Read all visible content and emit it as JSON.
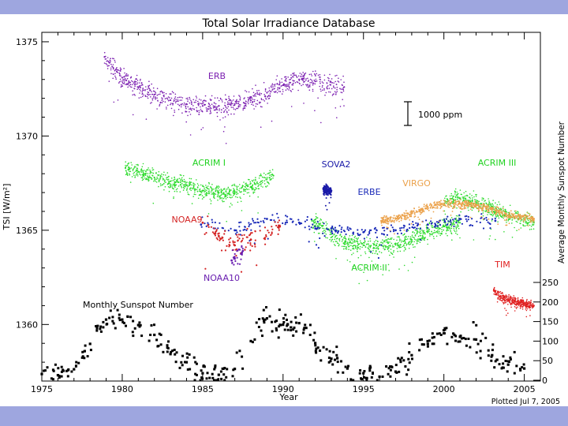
{
  "chart_data": {
    "type": "scatter",
    "title": "Total Solar Irradiance Database",
    "xlabel": "Year",
    "ylabel": "TSI [W/m²]",
    "y2label": "Average Monthly Sunspot Number",
    "xlim": [
      1975,
      2006
    ],
    "ylim": [
      1357,
      1375.5
    ],
    "xticks": [
      1975,
      1980,
      1985,
      1990,
      1995,
      2000,
      2005
    ],
    "yticks": [
      1360,
      1365,
      1370,
      1375
    ],
    "y2ticks": [
      0,
      50,
      100,
      150,
      200,
      250
    ],
    "scale_bar": "1000 ppm",
    "footer": "Plotted Jul  7, 2005",
    "colors": {
      "ERB": "#7b1fb0",
      "ACRIM": "#2edb2e",
      "SOVA2": "#1a1aa8",
      "ERBE": "#1a2ab8",
      "VIRGO": "#eba14a",
      "NOAA9": "#d42424",
      "NOAA10": "#6a1fb0",
      "TIM": "#e02020",
      "sunspot": "#000000",
      "band": "#9ea6df"
    },
    "series": [
      {
        "name": "ERB",
        "label": "ERB",
        "x": [
          1978.9,
          1980,
          1981,
          1982,
          1983,
          1984,
          1985,
          1986,
          1987,
          1988,
          1989,
          1990,
          1991,
          1992,
          1993.8
        ],
        "y": [
          1374.2,
          1373.1,
          1372.6,
          1372.2,
          1371.9,
          1371.7,
          1371.6,
          1371.6,
          1371.7,
          1371.9,
          1372.3,
          1372.7,
          1373.0,
          1372.9,
          1372.6
        ]
      },
      {
        "name": "ACRIM I",
        "label": "ACRIM I",
        "x": [
          1980.2,
          1981,
          1982,
          1983,
          1984,
          1985,
          1986,
          1987,
          1988,
          1989.4
        ],
        "y": [
          1368.3,
          1368.1,
          1367.8,
          1367.6,
          1367.4,
          1367.1,
          1367.0,
          1367.0,
          1367.3,
          1367.9
        ]
      },
      {
        "name": "ACRIM II",
        "label": "ACRIM II",
        "x": [
          1991.8,
          1993,
          1994,
          1995,
          1996,
          1997,
          1998,
          1999,
          2000,
          2001.0
        ],
        "y": [
          1365.5,
          1364.8,
          1364.3,
          1364.2,
          1364.2,
          1364.3,
          1364.5,
          1364.9,
          1365.2,
          1365.4
        ]
      },
      {
        "name": "ACRIM III",
        "label": "ACRIM III",
        "x": [
          2000.0,
          2001,
          2002,
          2003,
          2004,
          2005.6
        ],
        "y": [
          1366.4,
          1366.7,
          1366.5,
          1366.1,
          1365.8,
          1365.4
        ]
      },
      {
        "name": "SOVA2",
        "label": "SOVA2",
        "x": [
          1992.5,
          1993.0
        ],
        "y": [
          1367.2,
          1367.1
        ]
      },
      {
        "name": "ERBE",
        "label": "ERBE",
        "x": [
          1984.9,
          1987,
          1989,
          1991,
          1993,
          1995,
          1997,
          1999,
          2001,
          2003.2
        ],
        "y": [
          1365.3,
          1365.0,
          1365.6,
          1365.4,
          1365.1,
          1364.9,
          1365.0,
          1365.3,
          1365.6,
          1365.5
        ]
      },
      {
        "name": "VIRGO",
        "label": "VIRGO",
        "x": [
          1996.1,
          1997,
          1998,
          1999,
          2000,
          2001,
          2002,
          2003,
          2004,
          2005.6
        ],
        "y": [
          1365.5,
          1365.6,
          1365.9,
          1366.2,
          1366.4,
          1366.4,
          1366.3,
          1366.1,
          1365.8,
          1365.6
        ]
      },
      {
        "name": "NOAA9",
        "label": "NOAA9",
        "x": [
          1985.0,
          1986,
          1987,
          1988,
          1989.8
        ],
        "y": [
          1365.4,
          1364.7,
          1364.2,
          1364.5,
          1365.2
        ]
      },
      {
        "name": "NOAA10",
        "label": "NOAA10",
        "x": [
          1986.8,
          1987.5
        ],
        "y": [
          1363.4,
          1363.9
        ]
      },
      {
        "name": "TIM",
        "label": "TIM",
        "x": [
          2003.1,
          2003.5,
          2004,
          2004.5,
          2005,
          2005.6
        ],
        "y": [
          1361.8,
          1361.5,
          1361.3,
          1361.2,
          1361.1,
          1361.0
        ]
      },
      {
        "name": "Monthly Sunspot Number",
        "label": "Monthly Sunspot Number",
        "axis": "y2",
        "x": [
          1975,
          1976,
          1977,
          1978,
          1979,
          1980,
          1981,
          1982,
          1983,
          1984,
          1985,
          1986,
          1987,
          1988,
          1989,
          1990,
          1991,
          1992,
          1993,
          1994,
          1995,
          1996,
          1997,
          1998,
          1999,
          2000,
          2001,
          2002,
          2003,
          2004,
          2005
        ],
        "y": [
          16,
          13,
          28,
          93,
          155,
          155,
          141,
          116,
          67,
          46,
          18,
          14,
          29,
          100,
          158,
          142,
          146,
          95,
          55,
          30,
          18,
          9,
          22,
          64,
          93,
          120,
          111,
          104,
          64,
          40,
          30
        ]
      }
    ]
  }
}
